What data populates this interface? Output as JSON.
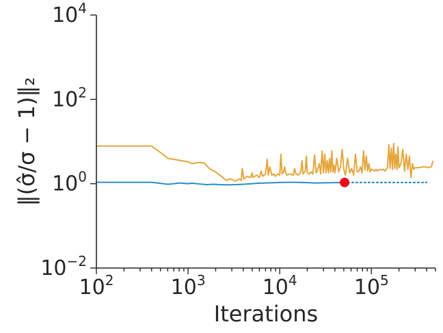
{
  "chart_data": {
    "type": "line",
    "title": "",
    "xlabel": "Iterations",
    "ylabel": "‖(σ̂/σ − 1)‖₂",
    "xscale": "log",
    "yscale": "log",
    "xlim": [
      100,
      500000
    ],
    "ylim": [
      0.01,
      10000
    ],
    "grid": false,
    "legend": "none",
    "x_ticks": [
      {
        "base": "10",
        "exp": "2"
      },
      {
        "base": "10",
        "exp": "3"
      },
      {
        "base": "10",
        "exp": "4"
      },
      {
        "base": "10",
        "exp": "5"
      }
    ],
    "y_ticks": [
      {
        "base": "10",
        "exp": "−2"
      },
      {
        "base": "10",
        "exp": "0"
      },
      {
        "base": "10",
        "exp": "2"
      },
      {
        "base": "10",
        "exp": "4"
      }
    ],
    "series": [
      {
        "color": "#2b8cc4",
        "style": "solid",
        "points": [
          [
            100,
            1.08
          ],
          [
            400,
            1.08
          ],
          [
            500,
            1.02
          ],
          [
            600,
            0.97
          ],
          [
            700,
            1.0
          ],
          [
            800,
            1.04
          ],
          [
            1000,
            1.0
          ],
          [
            1100,
            1.03
          ],
          [
            1300,
            0.99
          ],
          [
            1600,
            0.95
          ],
          [
            1900,
            0.97
          ],
          [
            2200,
            0.95
          ],
          [
            2700,
            0.94
          ],
          [
            3300,
            0.95
          ],
          [
            4000,
            0.97
          ],
          [
            5000,
            1.0
          ],
          [
            6000,
            1.03
          ],
          [
            7000,
            1.04
          ],
          [
            8000,
            1.05
          ],
          [
            10000,
            1.07
          ],
          [
            12000,
            1.08
          ],
          [
            15000,
            1.08
          ],
          [
            20000,
            1.06
          ],
          [
            25000,
            1.04
          ],
          [
            30000,
            1.05
          ],
          [
            40000,
            1.06
          ],
          [
            50000,
            1.07
          ]
        ]
      },
      {
        "color": "#2b8cc4",
        "style": "dotted",
        "points": [
          [
            50000,
            1.07
          ],
          [
            100000,
            1.07
          ],
          [
            200000,
            1.07
          ],
          [
            400000,
            1.07
          ]
        ]
      },
      {
        "color": "#e5a53c",
        "style": "solid",
        "points": [
          [
            100,
            7.8
          ],
          [
            200,
            7.8
          ],
          [
            400,
            7.8
          ],
          [
            500,
            5.5
          ],
          [
            600,
            4.0
          ],
          [
            800,
            3.6
          ],
          [
            1000,
            3.3
          ],
          [
            1100,
            3.0
          ],
          [
            1300,
            3.2
          ],
          [
            1500,
            3.1
          ],
          [
            1700,
            2.3
          ],
          [
            2000,
            1.9
          ],
          [
            2300,
            1.5
          ],
          [
            2600,
            1.2
          ],
          [
            2900,
            1.3
          ],
          [
            3300,
            1.15
          ],
          [
            3600,
            1.3
          ],
          [
            3800,
            1.2
          ],
          [
            3900,
            2.3
          ],
          [
            4050,
            1.3
          ],
          [
            4400,
            1.5
          ],
          [
            4800,
            1.4
          ],
          [
            5000,
            1.8
          ],
          [
            5100,
            1.4
          ],
          [
            5600,
            1.6
          ],
          [
            6000,
            1.4
          ],
          [
            6300,
            2.0
          ],
          [
            6500,
            1.5
          ],
          [
            7000,
            1.7
          ],
          [
            7300,
            3.8
          ],
          [
            7500,
            1.6
          ],
          [
            7800,
            2.5
          ],
          [
            8200,
            1.6
          ],
          [
            8600,
            1.7
          ],
          [
            9000,
            1.5
          ],
          [
            9500,
            1.7
          ],
          [
            10000,
            1.6
          ],
          [
            10300,
            5.0
          ],
          [
            10600,
            1.7
          ],
          [
            11000,
            1.9
          ],
          [
            11300,
            2.5
          ],
          [
            11600,
            1.8
          ],
          [
            12000,
            1.6
          ],
          [
            13000,
            1.7
          ],
          [
            14000,
            1.6
          ],
          [
            14500,
            2.3
          ],
          [
            15000,
            1.7
          ],
          [
            16000,
            1.6
          ],
          [
            17000,
            1.9
          ],
          [
            17500,
            3.5
          ],
          [
            18000,
            1.7
          ],
          [
            19000,
            2.0
          ],
          [
            19500,
            4.5
          ],
          [
            20000,
            1.8
          ],
          [
            21000,
            1.7
          ],
          [
            22000,
            1.9
          ],
          [
            23000,
            1.7
          ],
          [
            24000,
            4.8
          ],
          [
            25000,
            1.8
          ],
          [
            26000,
            2.2
          ],
          [
            27000,
            3.0
          ],
          [
            28000,
            1.7
          ],
          [
            29000,
            6.0
          ],
          [
            30000,
            1.8
          ],
          [
            31000,
            5.0
          ],
          [
            32000,
            1.8
          ],
          [
            33000,
            3.5
          ],
          [
            34000,
            1.8
          ],
          [
            35000,
            4.0
          ],
          [
            36000,
            1.9
          ],
          [
            37000,
            6.0
          ],
          [
            38000,
            1.9
          ],
          [
            39000,
            2.8
          ],
          [
            40000,
            1.8
          ],
          [
            42000,
            4.0
          ],
          [
            44000,
            1.9
          ],
          [
            46000,
            2.5
          ],
          [
            48000,
            6.5
          ],
          [
            50000,
            2.2
          ],
          [
            52000,
            1.6
          ],
          [
            55000,
            4.0
          ],
          [
            58000,
            1.8
          ],
          [
            61000,
            2.3
          ],
          [
            64000,
            1.6
          ],
          [
            67000,
            5.0
          ],
          [
            70000,
            1.9
          ],
          [
            73000,
            2.0
          ],
          [
            76000,
            2.5
          ],
          [
            79000,
            1.8
          ],
          [
            82000,
            6.0
          ],
          [
            85000,
            2.1
          ],
          [
            88000,
            4.5
          ],
          [
            91000,
            2.0
          ],
          [
            94000,
            3.0
          ],
          [
            97000,
            1.9
          ],
          [
            100000,
            2.2
          ],
          [
            104000,
            2.1
          ],
          [
            108000,
            2.0
          ],
          [
            112000,
            2.2
          ],
          [
            116000,
            2.0
          ],
          [
            120000,
            2.1
          ],
          [
            125000,
            2.2
          ],
          [
            130000,
            2.1
          ],
          [
            135000,
            2.2
          ],
          [
            140000,
            2.0
          ],
          [
            145000,
            2.2
          ],
          [
            150000,
            2.4
          ],
          [
            155000,
            8.5
          ],
          [
            160000,
            2.3
          ],
          [
            165000,
            7.0
          ],
          [
            170000,
            2.2
          ],
          [
            175000,
            9.0
          ],
          [
            180000,
            2.3
          ],
          [
            185000,
            5.0
          ],
          [
            190000,
            2.2
          ],
          [
            195000,
            7.5
          ],
          [
            200000,
            2.4
          ],
          [
            210000,
            3.0
          ],
          [
            220000,
            6.5
          ],
          [
            230000,
            2.0
          ],
          [
            240000,
            5.0
          ],
          [
            250000,
            2.2
          ],
          [
            260000,
            4.5
          ],
          [
            270000,
            1.4
          ],
          [
            280000,
            3.0
          ],
          [
            290000,
            2.2
          ],
          [
            300000,
            2.4
          ],
          [
            330000,
            2.4
          ],
          [
            360000,
            2.5
          ],
          [
            390000,
            2.5
          ],
          [
            420000,
            2.4
          ],
          [
            450000,
            2.5
          ],
          [
            470000,
            3.5
          ]
        ]
      }
    ],
    "marker": {
      "x": 51000,
      "y": 1.07,
      "color": "#e8101a"
    }
  }
}
